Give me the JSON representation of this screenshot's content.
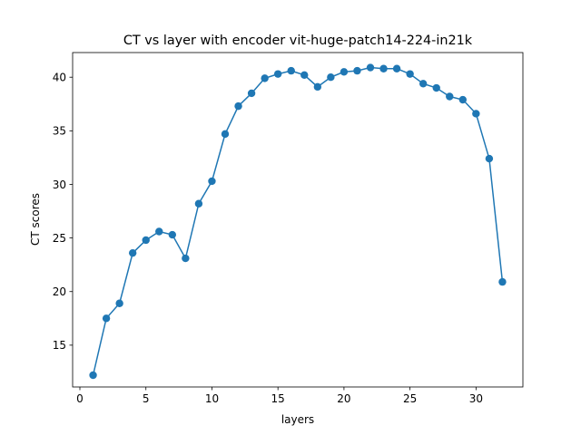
{
  "chart_data": {
    "type": "line",
    "title": "CT vs layer with encoder vit-huge-patch14-224-in21k",
    "xlabel": "layers",
    "ylabel": "CT scores",
    "xlim": [
      -0.55,
      33.55
    ],
    "ylim": [
      11.1,
      42.3
    ],
    "xticks": [
      0,
      5,
      10,
      15,
      20,
      25,
      30
    ],
    "yticks": [
      15,
      20,
      25,
      30,
      35,
      40
    ],
    "grid": false,
    "marker": "circle",
    "colors": {
      "series": "#1f77b4"
    },
    "series": [
      {
        "x": [
          1,
          2,
          3,
          4,
          5,
          6,
          7,
          8,
          9,
          10,
          11,
          12,
          13,
          14,
          15,
          16,
          17,
          18,
          19,
          20,
          21,
          22,
          23,
          24,
          25,
          26,
          27,
          28,
          29,
          30,
          31,
          32
        ],
        "values": [
          12.2,
          17.5,
          18.9,
          23.6,
          24.8,
          25.6,
          25.3,
          23.1,
          28.2,
          30.3,
          34.7,
          37.3,
          38.5,
          39.9,
          40.3,
          40.6,
          40.2,
          39.1,
          40.0,
          40.5,
          40.6,
          40.9,
          40.8,
          40.8,
          40.3,
          39.4,
          39.0,
          38.2,
          37.9,
          36.6,
          32.4,
          20.9
        ]
      }
    ]
  }
}
